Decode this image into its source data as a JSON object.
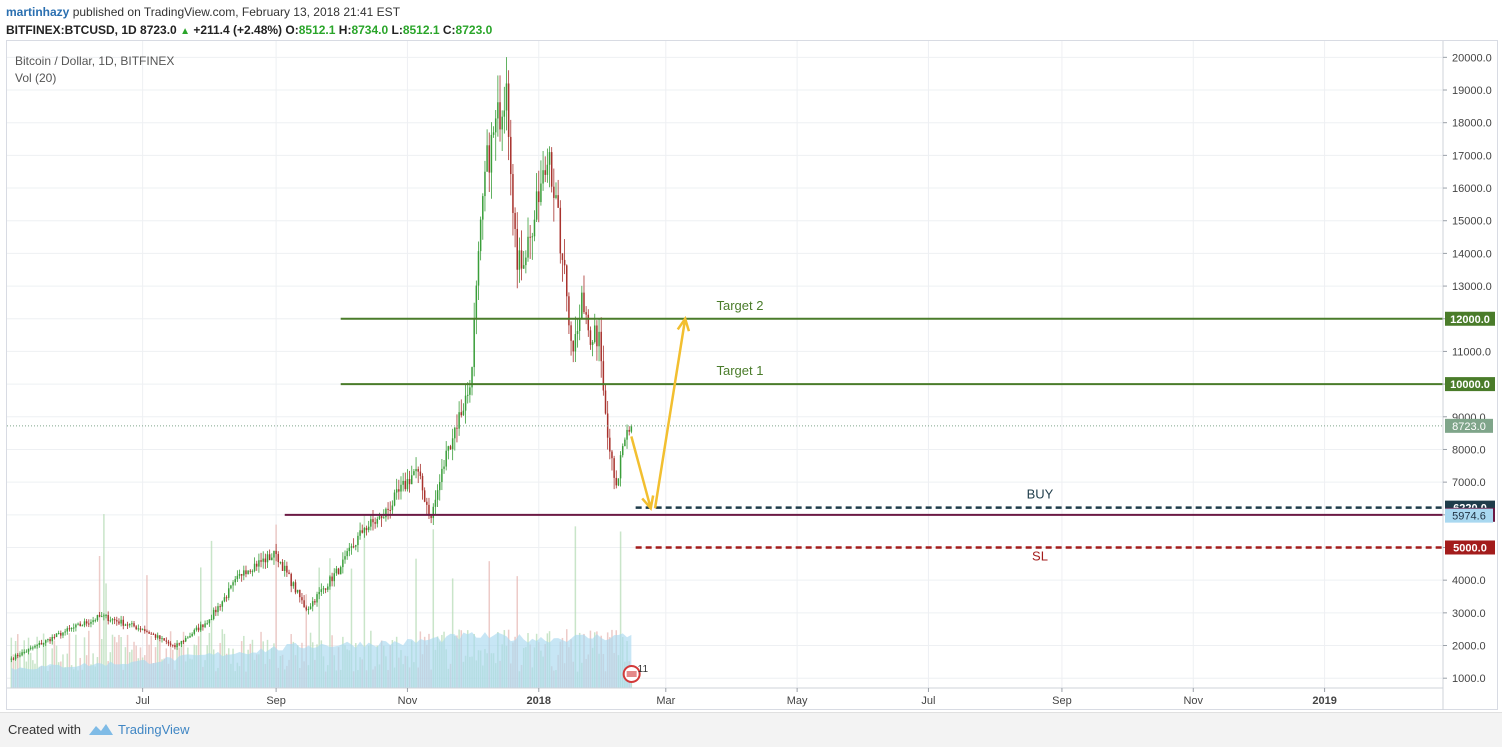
{
  "header": {
    "author": "martinhazy",
    "published_text": "published on TradingView.com, February 13, 2018 21:41 EST",
    "symbol": "BITFINEX:BTCUSD, 1D",
    "price": "8723.0",
    "change": "+211.4 (+2.48%)",
    "o_label": "O:",
    "o_value": "8512.1",
    "h_label": "H:",
    "h_value": "8734.0",
    "l_label": "L:",
    "l_value": "8512.1",
    "c_label": "C:",
    "c_value": "8723.0"
  },
  "legend": {
    "title": "Bitcoin / Dollar, 1D, BITFINEX",
    "volume": "Vol (20)"
  },
  "footer": {
    "created_with": "Created with",
    "brand": "TradingView"
  },
  "colors": {
    "up": "#3a9e3a",
    "down": "#a8322d",
    "target_line": "#4a7c2a",
    "support_line": "#6b1a44",
    "buy_line": "#1f3c4a",
    "sl_line": "#a31c1c",
    "arrow": "#f2bf30",
    "volume_area": "#a9d8f0",
    "current_price": "#7fa58a"
  },
  "chart_data": {
    "type": "candlestick",
    "y_axis": {
      "range": [
        700,
        20500
      ],
      "ticks": [
        1000,
        2000,
        3000,
        4000,
        5000,
        6000,
        7000,
        8000,
        9000,
        10000,
        11000,
        12000,
        13000,
        14000,
        15000,
        16000,
        17000,
        18000,
        19000,
        20000
      ],
      "tick_labels": [
        "1000.0",
        "2000.0",
        "3000.0",
        "4000.0",
        "5000.0",
        "6000.0",
        "7000.0",
        "8000.0",
        "9000.0",
        "10000.0",
        "11000.0",
        "12000.0",
        "13000.0",
        "14000.0",
        "15000.0",
        "16000.0",
        "17000.0",
        "18000.0",
        "19000.0",
        "20000.0"
      ]
    },
    "x_axis": {
      "range": [
        "2017-04-29",
        "2019-02-25"
      ],
      "ticks": [
        "2017-07-01",
        "2017-09-01",
        "2017-11-01",
        "2018-01-01",
        "2018-03-01",
        "2018-05-01",
        "2018-07-01",
        "2018-09-01",
        "2018-11-01",
        "2019-01-01"
      ],
      "tick_labels": [
        "Jul",
        "Sep",
        "Nov",
        "2018",
        "Mar",
        "May",
        "Jul",
        "Sep",
        "Nov",
        "2019"
      ]
    },
    "price_keypoints": [
      {
        "date": "2017-05-01",
        "close": 1600
      },
      {
        "date": "2017-05-25",
        "close": 2400
      },
      {
        "date": "2017-06-12",
        "close": 2900
      },
      {
        "date": "2017-07-01",
        "close": 2500
      },
      {
        "date": "2017-07-16",
        "close": 1950
      },
      {
        "date": "2017-08-01",
        "close": 2800
      },
      {
        "date": "2017-08-17",
        "close": 4300
      },
      {
        "date": "2017-09-01",
        "close": 4800
      },
      {
        "date": "2017-09-15",
        "close": 3100
      },
      {
        "date": "2017-10-01",
        "close": 4400
      },
      {
        "date": "2017-10-12",
        "close": 5600
      },
      {
        "date": "2017-10-20",
        "close": 5900
      },
      {
        "date": "2017-11-05",
        "close": 7400
      },
      {
        "date": "2017-11-12",
        "close": 5900
      },
      {
        "date": "2017-11-20",
        "close": 8100
      },
      {
        "date": "2017-11-30",
        "close": 9900
      },
      {
        "date": "2017-12-07",
        "close": 16500
      },
      {
        "date": "2017-12-17",
        "close": 19200
      },
      {
        "date": "2017-12-22",
        "close": 13500
      },
      {
        "date": "2017-12-28",
        "close": 14500
      },
      {
        "date": "2018-01-06",
        "close": 17100
      },
      {
        "date": "2018-01-12",
        "close": 13800
      },
      {
        "date": "2018-01-17",
        "close": 11000
      },
      {
        "date": "2018-01-21",
        "close": 12800
      },
      {
        "date": "2018-01-25",
        "close": 11200
      },
      {
        "date": "2018-01-29",
        "close": 11600
      },
      {
        "date": "2018-02-01",
        "close": 9100
      },
      {
        "date": "2018-02-06",
        "close": 6900
      },
      {
        "date": "2018-02-10",
        "close": 8300
      },
      {
        "date": "2018-02-13",
        "close": 8723
      }
    ],
    "volume_ma": [
      {
        "date": "2017-05-01",
        "value": 1300
      },
      {
        "date": "2017-07-01",
        "value": 1500
      },
      {
        "date": "2017-09-15",
        "value": 2000
      },
      {
        "date": "2017-11-01",
        "value": 2100
      },
      {
        "date": "2017-12-01",
        "value": 2300
      },
      {
        "date": "2018-01-01",
        "value": 2200
      },
      {
        "date": "2018-02-13",
        "value": 2300
      }
    ],
    "levels": [
      {
        "label": "Target 2",
        "price": 12000,
        "axis_label": "12000.0",
        "style": "solid",
        "start": "2017-10-01"
      },
      {
        "label": "Target 1",
        "price": 10000,
        "axis_label": "10000.0",
        "style": "solid",
        "start": "2017-10-01"
      },
      {
        "label": "BUY",
        "price": 6220,
        "axis_label": "6220.0",
        "style": "dashed",
        "start": "2018-02-15"
      },
      {
        "label": "",
        "price": 6000,
        "axis_label": "6000.0",
        "style": "solid",
        "start": "2017-09-05"
      },
      {
        "label": "SL",
        "price": 5000,
        "axis_label": "5000.0",
        "style": "dashed",
        "start": "2018-02-15"
      }
    ],
    "current_price": {
      "price": 8723,
      "label": "8723.0"
    },
    "volume_ma_label": {
      "price": 5974.6,
      "label": "5974.6"
    },
    "arrows": [
      {
        "from": {
          "date": "2018-02-13",
          "price": 8400
        },
        "to": {
          "date": "2018-02-22",
          "price": 6200
        }
      },
      {
        "from": {
          "date": "2018-02-24",
          "price": 6200
        },
        "to": {
          "date": "2018-03-10",
          "price": 12000
        }
      }
    ],
    "event_badge": {
      "date": "2018-02-15",
      "label": "11"
    }
  }
}
